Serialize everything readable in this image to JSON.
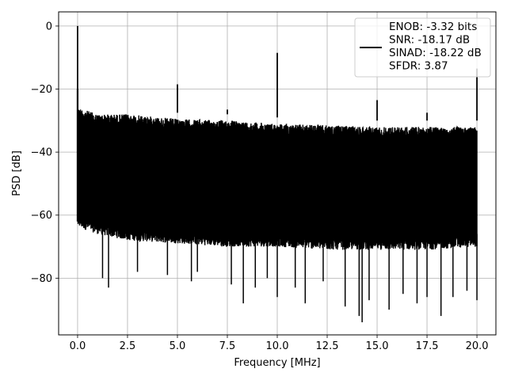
{
  "chart_data": {
    "type": "line",
    "title": "",
    "xlabel": "Frequency [MHz]",
    "ylabel": "PSD [dB]",
    "xlim": [
      -0.95,
      20.95
    ],
    "ylim": [
      -98,
      4.5
    ],
    "xticks": [
      0.0,
      2.5,
      5.0,
      7.5,
      10.0,
      12.5,
      15.0,
      17.5,
      20.0
    ],
    "xtick_labels": [
      "0.0",
      "2.5",
      "5.0",
      "7.5",
      "10.0",
      "12.5",
      "15.0",
      "17.5",
      "20.0"
    ],
    "yticks": [
      0,
      -20,
      -40,
      -60,
      -80
    ],
    "ytick_labels": [
      "0",
      "−20",
      "−40",
      "−60",
      "−80"
    ],
    "grid": true,
    "legend_position": "top-right",
    "series": [
      {
        "name": "ENOB: -3.32 bits\nSNR: -18.17 dB\nSINAD: -18.22 dB\nSFDR: 3.87",
        "color": "#000000",
        "legend_lines": [
          "ENOB: -3.32 bits",
          "SNR: -18.17 dB",
          "SINAD: -18.22 dB",
          "SFDR: 3.87"
        ],
        "description": "noise floor envelope with spectral spurs",
        "upper_envelope": [
          [
            0.1,
            -26
          ],
          [
            1.0,
            -28
          ],
          [
            2.5,
            -28
          ],
          [
            5.0,
            -29.5
          ],
          [
            7.5,
            -30
          ],
          [
            10.0,
            -31
          ],
          [
            12.5,
            -31.5
          ],
          [
            15.0,
            -32
          ],
          [
            17.5,
            -32
          ],
          [
            20.0,
            -32
          ]
        ],
        "lower_envelope": [
          [
            0.1,
            -64
          ],
          [
            1.0,
            -66
          ],
          [
            2.5,
            -68
          ],
          [
            5.0,
            -69
          ],
          [
            7.5,
            -70
          ],
          [
            10.0,
            -70
          ],
          [
            12.5,
            -71
          ],
          [
            15.0,
            -71
          ],
          [
            17.5,
            -71
          ],
          [
            20.0,
            -70
          ]
        ],
        "spurs": [
          {
            "x": 0.0,
            "y": 0.0
          },
          {
            "x": 5.0,
            "y": -18.5
          },
          {
            "x": 7.5,
            "y": -26.5
          },
          {
            "x": 10.0,
            "y": -8.5
          },
          {
            "x": 15.0,
            "y": -23.5
          },
          {
            "x": 17.5,
            "y": -27.5
          },
          {
            "x": 20.0,
            "y": -13.5
          }
        ],
        "dips": [
          {
            "x": 1.25,
            "y": -80
          },
          {
            "x": 1.55,
            "y": -83
          },
          {
            "x": 3.0,
            "y": -78
          },
          {
            "x": 4.5,
            "y": -79
          },
          {
            "x": 5.7,
            "y": -81
          },
          {
            "x": 6.0,
            "y": -78
          },
          {
            "x": 7.7,
            "y": -82
          },
          {
            "x": 8.3,
            "y": -88
          },
          {
            "x": 8.9,
            "y": -83
          },
          {
            "x": 9.5,
            "y": -80
          },
          {
            "x": 10.0,
            "y": -86
          },
          {
            "x": 10.9,
            "y": -83
          },
          {
            "x": 11.4,
            "y": -88
          },
          {
            "x": 12.3,
            "y": -81
          },
          {
            "x": 13.4,
            "y": -89
          },
          {
            "x": 14.1,
            "y": -92
          },
          {
            "x": 14.25,
            "y": -94
          },
          {
            "x": 14.6,
            "y": -87
          },
          {
            "x": 15.6,
            "y": -90
          },
          {
            "x": 16.3,
            "y": -85
          },
          {
            "x": 17.0,
            "y": -88
          },
          {
            "x": 17.5,
            "y": -86
          },
          {
            "x": 18.2,
            "y": -92
          },
          {
            "x": 18.8,
            "y": -86
          },
          {
            "x": 19.5,
            "y": -84
          },
          {
            "x": 20.0,
            "y": -87
          }
        ]
      }
    ]
  }
}
